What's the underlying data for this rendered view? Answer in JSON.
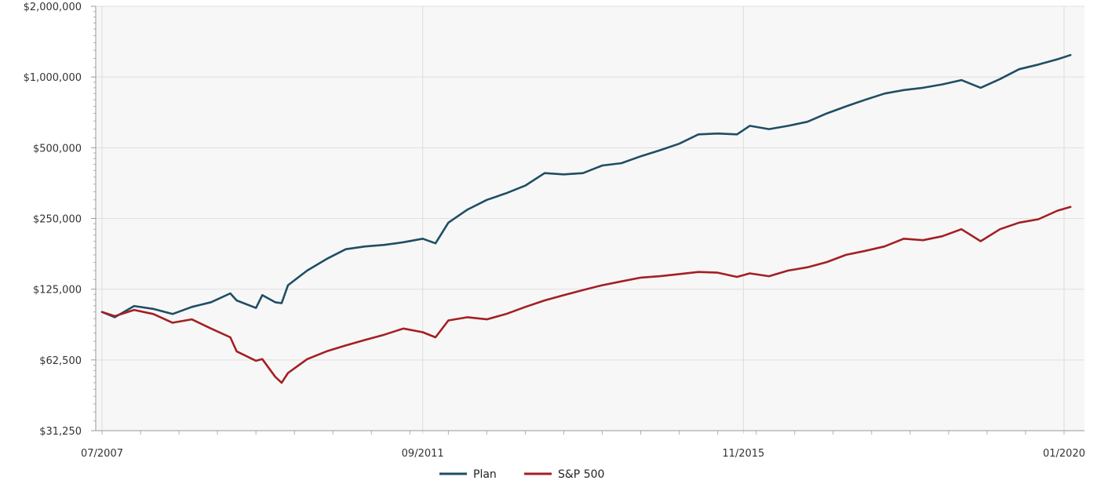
{
  "chart_data": {
    "type": "line",
    "title": "",
    "xlabel": "",
    "ylabel": "",
    "y_scale": "log2",
    "ylim": [
      31250,
      2000000
    ],
    "xlim": [
      "2007-07",
      "2020-02"
    ],
    "grid": true,
    "legend_position": "bottom-center",
    "y_ticks": [
      {
        "value": 2000000,
        "label": "$2,000,000"
      },
      {
        "value": 1000000,
        "label": "$1,000,000"
      },
      {
        "value": 500000,
        "label": "$500,000"
      },
      {
        "value": 250000,
        "label": "$250,000"
      },
      {
        "value": 125000,
        "label": "$125,000"
      },
      {
        "value": 62500,
        "label": "$62,500"
      },
      {
        "value": 31250,
        "label": "$31,250"
      }
    ],
    "x_ticks": [
      {
        "value": "2007-07",
        "label": "07/2007"
      },
      {
        "value": "2011-09",
        "label": "09/2011"
      },
      {
        "value": "2015-11",
        "label": "11/2015"
      },
      {
        "value": "2020-01",
        "label": "01/2020"
      }
    ],
    "series": [
      {
        "name": "Plan",
        "color": "#1f4e63",
        "points": [
          [
            "2007-07",
            100000
          ],
          [
            "2007-09",
            95000
          ],
          [
            "2007-12",
            106000
          ],
          [
            "2008-03",
            103000
          ],
          [
            "2008-06",
            98000
          ],
          [
            "2008-09",
            105000
          ],
          [
            "2008-12",
            110000
          ],
          [
            "2009-03",
            120000
          ],
          [
            "2009-04",
            112000
          ],
          [
            "2009-07",
            104000
          ],
          [
            "2009-08",
            118000
          ],
          [
            "2009-10",
            110000
          ],
          [
            "2009-11",
            109000
          ],
          [
            "2009-12",
            130000
          ],
          [
            "2010-03",
            150000
          ],
          [
            "2010-06",
            168000
          ],
          [
            "2010-09",
            185000
          ],
          [
            "2010-12",
            190000
          ],
          [
            "2011-03",
            193000
          ],
          [
            "2011-06",
            198000
          ],
          [
            "2011-09",
            205000
          ],
          [
            "2011-11",
            196000
          ],
          [
            "2012-01",
            240000
          ],
          [
            "2012-04",
            273000
          ],
          [
            "2012-07",
            300000
          ],
          [
            "2012-10",
            320000
          ],
          [
            "2013-01",
            345000
          ],
          [
            "2013-04",
            390000
          ],
          [
            "2013-07",
            385000
          ],
          [
            "2013-10",
            390000
          ],
          [
            "2014-01",
            420000
          ],
          [
            "2014-04",
            430000
          ],
          [
            "2014-07",
            460000
          ],
          [
            "2014-10",
            488000
          ],
          [
            "2015-01",
            520000
          ],
          [
            "2015-04",
            570000
          ],
          [
            "2015-07",
            575000
          ],
          [
            "2015-10",
            570000
          ],
          [
            "2015-12",
            620000
          ],
          [
            "2016-03",
            600000
          ],
          [
            "2016-06",
            620000
          ],
          [
            "2016-09",
            645000
          ],
          [
            "2016-12",
            700000
          ],
          [
            "2017-03",
            750000
          ],
          [
            "2017-06",
            800000
          ],
          [
            "2017-09",
            850000
          ],
          [
            "2017-12",
            880000
          ],
          [
            "2018-03",
            900000
          ],
          [
            "2018-06",
            930000
          ],
          [
            "2018-09",
            970000
          ],
          [
            "2018-12",
            900000
          ],
          [
            "2019-03",
            980000
          ],
          [
            "2019-06",
            1080000
          ],
          [
            "2019-09",
            1130000
          ],
          [
            "2019-12",
            1190000
          ],
          [
            "2020-02",
            1240000
          ]
        ]
      },
      {
        "name": "S&P 500",
        "color": "#a31f24",
        "points": [
          [
            "2007-07",
            100000
          ],
          [
            "2007-09",
            96000
          ],
          [
            "2007-12",
            102000
          ],
          [
            "2008-03",
            98000
          ],
          [
            "2008-06",
            90000
          ],
          [
            "2008-09",
            93000
          ],
          [
            "2008-12",
            85000
          ],
          [
            "2009-03",
            78000
          ],
          [
            "2009-04",
            68000
          ],
          [
            "2009-07",
            62000
          ],
          [
            "2009-08",
            63000
          ],
          [
            "2009-10",
            53000
          ],
          [
            "2009-11",
            50000
          ],
          [
            "2009-12",
            55000
          ],
          [
            "2010-03",
            63000
          ],
          [
            "2010-06",
            68000
          ],
          [
            "2010-09",
            72000
          ],
          [
            "2010-12",
            76000
          ],
          [
            "2011-03",
            80000
          ],
          [
            "2011-06",
            85000
          ],
          [
            "2011-09",
            82000
          ],
          [
            "2011-11",
            78000
          ],
          [
            "2012-01",
            92000
          ],
          [
            "2012-04",
            95000
          ],
          [
            "2012-07",
            93000
          ],
          [
            "2012-10",
            98000
          ],
          [
            "2013-01",
            105000
          ],
          [
            "2013-04",
            112000
          ],
          [
            "2013-07",
            118000
          ],
          [
            "2013-10",
            124000
          ],
          [
            "2014-01",
            130000
          ],
          [
            "2014-04",
            135000
          ],
          [
            "2014-07",
            140000
          ],
          [
            "2014-10",
            142000
          ],
          [
            "2015-01",
            145000
          ],
          [
            "2015-04",
            148000
          ],
          [
            "2015-07",
            147000
          ],
          [
            "2015-10",
            141000
          ],
          [
            "2015-12",
            146000
          ],
          [
            "2016-03",
            142000
          ],
          [
            "2016-06",
            150000
          ],
          [
            "2016-09",
            155000
          ],
          [
            "2016-12",
            163000
          ],
          [
            "2017-03",
            175000
          ],
          [
            "2017-06",
            182000
          ],
          [
            "2017-09",
            190000
          ],
          [
            "2017-12",
            205000
          ],
          [
            "2018-03",
            202000
          ],
          [
            "2018-06",
            210000
          ],
          [
            "2018-09",
            225000
          ],
          [
            "2018-12",
            200000
          ],
          [
            "2019-03",
            225000
          ],
          [
            "2019-06",
            240000
          ],
          [
            "2019-09",
            248000
          ],
          [
            "2019-12",
            270000
          ],
          [
            "2020-02",
            280000
          ]
        ]
      }
    ]
  }
}
